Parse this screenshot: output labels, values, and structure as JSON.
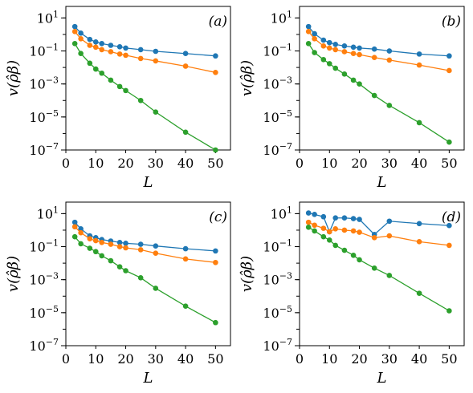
{
  "figure": {
    "colors": {
      "blue": "#1f77b4",
      "orange": "#ff7f0e",
      "green": "#2ca02c"
    }
  },
  "chart_data": [
    {
      "type": "line",
      "panel_label": "(a)",
      "xlabel": "L",
      "ylabel": "v(ρ̂β)",
      "xlim": [
        0,
        55
      ],
      "ylim": [
        1e-07,
        50
      ],
      "yscale": "log",
      "xticks": [
        "0",
        "10",
        "20",
        "30",
        "40",
        "50"
      ],
      "yticks": [
        "10^-7",
        "10^-5",
        "10^-3",
        "10^-1",
        "10^1"
      ],
      "series": [
        {
          "color": "#1f77b4",
          "x": [
            3,
            5,
            8,
            10,
            12,
            15,
            18,
            20,
            25,
            30,
            40,
            50
          ],
          "y": [
            3.0,
            1.2,
            0.5,
            0.35,
            0.28,
            0.22,
            0.18,
            0.15,
            0.12,
            0.095,
            0.07,
            0.05
          ]
        },
        {
          "color": "#ff7f0e",
          "x": [
            3,
            5,
            8,
            10,
            12,
            15,
            18,
            20,
            25,
            30,
            40,
            50
          ],
          "y": [
            1.5,
            0.55,
            0.22,
            0.17,
            0.12,
            0.09,
            0.065,
            0.055,
            0.035,
            0.025,
            0.012,
            0.005
          ]
        },
        {
          "color": "#2ca02c",
          "x": [
            3,
            5,
            8,
            10,
            12,
            15,
            18,
            20,
            25,
            30,
            40,
            50
          ],
          "y": [
            0.28,
            0.07,
            0.018,
            0.008,
            0.0045,
            0.0017,
            0.0007,
            0.0004,
            0.0001,
            2e-05,
            1.2e-06,
            1e-07
          ]
        }
      ]
    },
    {
      "type": "line",
      "panel_label": "(b)",
      "xlabel": "L",
      "ylabel": "v(ρ̂β)",
      "xlim": [
        0,
        55
      ],
      "ylim": [
        1e-07,
        50
      ],
      "yscale": "log",
      "xticks": [
        "0",
        "10",
        "20",
        "30",
        "40",
        "50"
      ],
      "yticks": [
        "10^-7",
        "10^-5",
        "10^-3",
        "10^-1",
        "10^1"
      ],
      "series": [
        {
          "color": "#1f77b4",
          "x": [
            3,
            5,
            8,
            10,
            12,
            15,
            18,
            20,
            25,
            30,
            40,
            50
          ],
          "y": [
            3.0,
            1.1,
            0.45,
            0.32,
            0.25,
            0.2,
            0.17,
            0.15,
            0.13,
            0.1,
            0.065,
            0.05
          ]
        },
        {
          "color": "#ff7f0e",
          "x": [
            3,
            5,
            8,
            10,
            12,
            15,
            18,
            20,
            25,
            30,
            40,
            50
          ],
          "y": [
            1.5,
            0.55,
            0.2,
            0.15,
            0.12,
            0.09,
            0.07,
            0.06,
            0.04,
            0.028,
            0.014,
            0.0065
          ]
        },
        {
          "color": "#2ca02c",
          "x": [
            3,
            5,
            8,
            10,
            12,
            15,
            18,
            20,
            25,
            30,
            40,
            50
          ],
          "y": [
            0.28,
            0.08,
            0.03,
            0.017,
            0.009,
            0.004,
            0.0017,
            0.001,
            0.0002,
            5e-05,
            4.5e-06,
            3e-07
          ]
        }
      ]
    },
    {
      "type": "line",
      "panel_label": "(c)",
      "xlabel": "L",
      "ylabel": "v(ρ̂β)",
      "xlim": [
        0,
        55
      ],
      "ylim": [
        1e-07,
        50
      ],
      "yscale": "log",
      "xticks": [
        "0",
        "10",
        "20",
        "30",
        "40",
        "50"
      ],
      "yticks": [
        "10^-7",
        "10^-5",
        "10^-3",
        "10^-1",
        "10^1"
      ],
      "series": [
        {
          "color": "#1f77b4",
          "x": [
            3,
            5,
            8,
            10,
            12,
            15,
            18,
            20,
            25,
            30,
            40,
            50
          ],
          "y": [
            3.0,
            1.2,
            0.45,
            0.35,
            0.27,
            0.22,
            0.18,
            0.16,
            0.14,
            0.11,
            0.075,
            0.055
          ]
        },
        {
          "color": "#ff7f0e",
          "x": [
            3,
            5,
            8,
            10,
            12,
            15,
            18,
            20,
            25,
            30,
            40,
            50
          ],
          "y": [
            1.6,
            0.7,
            0.3,
            0.23,
            0.18,
            0.14,
            0.1,
            0.085,
            0.065,
            0.04,
            0.018,
            0.011
          ]
        },
        {
          "color": "#2ca02c",
          "x": [
            3,
            5,
            8,
            10,
            12,
            15,
            18,
            20,
            25,
            30,
            40,
            50
          ],
          "y": [
            0.4,
            0.15,
            0.08,
            0.05,
            0.028,
            0.014,
            0.006,
            0.0035,
            0.0013,
            0.0003,
            2.5e-05,
            2.5e-06
          ]
        }
      ]
    },
    {
      "type": "line",
      "panel_label": "(d)",
      "xlabel": "L",
      "ylabel": "v(ρ̂β)",
      "xlim": [
        0,
        55
      ],
      "ylim": [
        1e-07,
        50
      ],
      "yscale": "log",
      "xticks": [
        "0",
        "10",
        "20",
        "30",
        "40",
        "50"
      ],
      "yticks": [
        "10^-7",
        "10^-5",
        "10^-3",
        "10^-1",
        "10^1"
      ],
      "series": [
        {
          "color": "#1f77b4",
          "x": [
            3,
            5,
            8,
            10,
            12,
            15,
            18,
            20,
            25,
            30,
            40,
            50
          ],
          "y": [
            11,
            9,
            6.5,
            0.8,
            5.5,
            5.5,
            5.0,
            4.5,
            0.55,
            3.5,
            2.5,
            1.9
          ]
        },
        {
          "color": "#ff7f0e",
          "x": [
            3,
            5,
            8,
            10,
            12,
            15,
            18,
            20,
            25,
            30,
            40,
            50
          ],
          "y": [
            3.0,
            2.0,
            1.3,
            0.8,
            1.2,
            1.0,
            0.9,
            0.75,
            0.35,
            0.45,
            0.2,
            0.12
          ]
        },
        {
          "color": "#2ca02c",
          "x": [
            3,
            5,
            8,
            10,
            12,
            15,
            18,
            20,
            25,
            30,
            40,
            50
          ],
          "y": [
            1.5,
            0.9,
            0.4,
            0.25,
            0.12,
            0.06,
            0.03,
            0.016,
            0.005,
            0.0018,
            0.00015,
            1.3e-05
          ]
        }
      ]
    }
  ]
}
